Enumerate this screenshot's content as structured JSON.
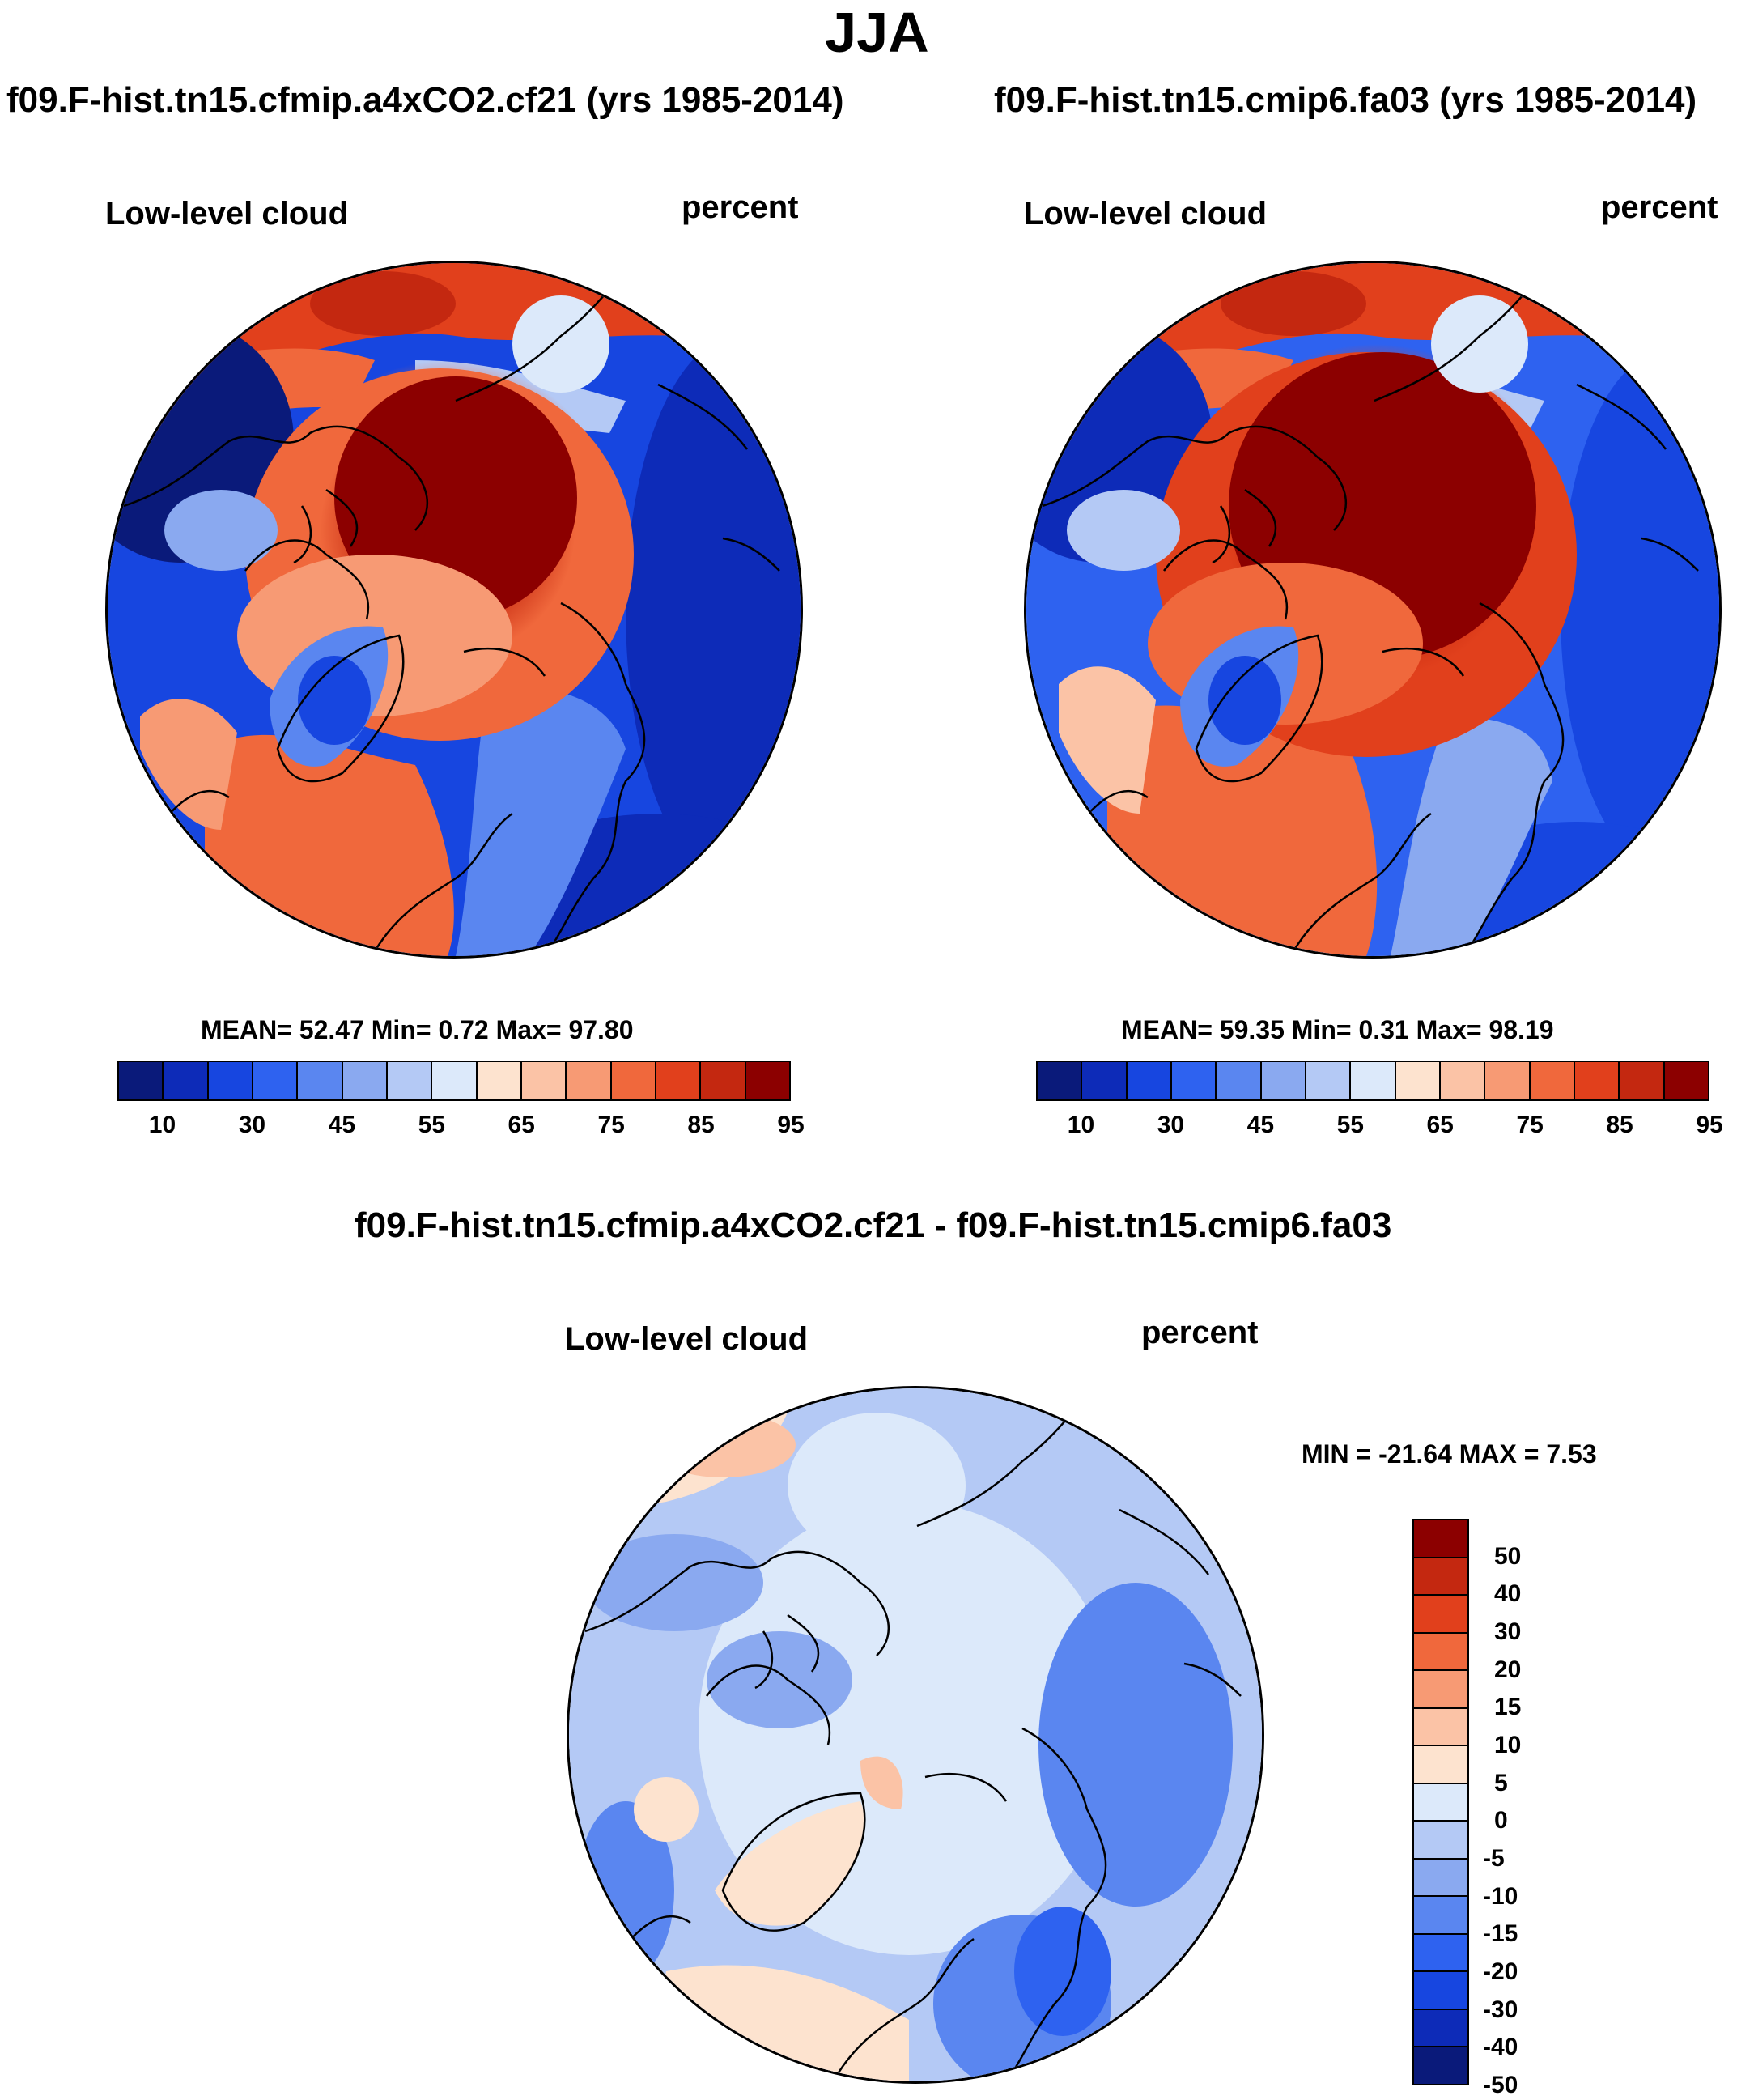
{
  "title": "JJA",
  "panels": [
    {
      "case": "f09.F-hist.tn15.cfmip.a4xCO2.cf21 (yrs 1985-2014)",
      "variable": "Low-level cloud",
      "units": "percent",
      "stats": "MEAN=  52.47  Min=   0.72  Max=  97.80"
    },
    {
      "case": "f09.F-hist.tn15.cmip6.fa03 (yrs 1985-2014)",
      "variable": "Low-level cloud",
      "units": "percent",
      "stats": "MEAN=  59.35  Min=   0.31  Max=  98.19"
    }
  ],
  "diff_panel": {
    "case": "f09.F-hist.tn15.cfmip.a4xCO2.cf21 - f09.F-hist.tn15.cmip6.fa03",
    "variable": "Low-level cloud",
    "units": "percent",
    "stats": "MIN = -21.64 MAX =   7.53"
  },
  "colorbar_main": {
    "colors": [
      "#0a1a7a",
      "#0d2bb8",
      "#1746e0",
      "#2e62f0",
      "#5a86f0",
      "#8aa9f0",
      "#b4c9f5",
      "#dce9fa",
      "#fde3cf",
      "#fbc3a6",
      "#f79a74",
      "#f0683c",
      "#e1401c",
      "#c42810",
      "#8c0000"
    ],
    "ticks": [
      "10",
      "30",
      "45",
      "55",
      "65",
      "75",
      "85",
      "95"
    ]
  },
  "colorbar_diff": {
    "colors": [
      "#8c0000",
      "#c42810",
      "#e1401c",
      "#f0683c",
      "#f79a74",
      "#fbc3a6",
      "#fde3cf",
      "#dce9fa",
      "#b4c9f5",
      "#8aa9f0",
      "#5a86f0",
      "#2e62f0",
      "#1746e0",
      "#0d2bb8",
      "#0a1a7a"
    ],
    "ticks": [
      "50",
      "40",
      "30",
      "20",
      "15",
      "10",
      "5",
      "0",
      "-5",
      "-10",
      "-15",
      "-20",
      "-30",
      "-40",
      "-50"
    ]
  }
}
